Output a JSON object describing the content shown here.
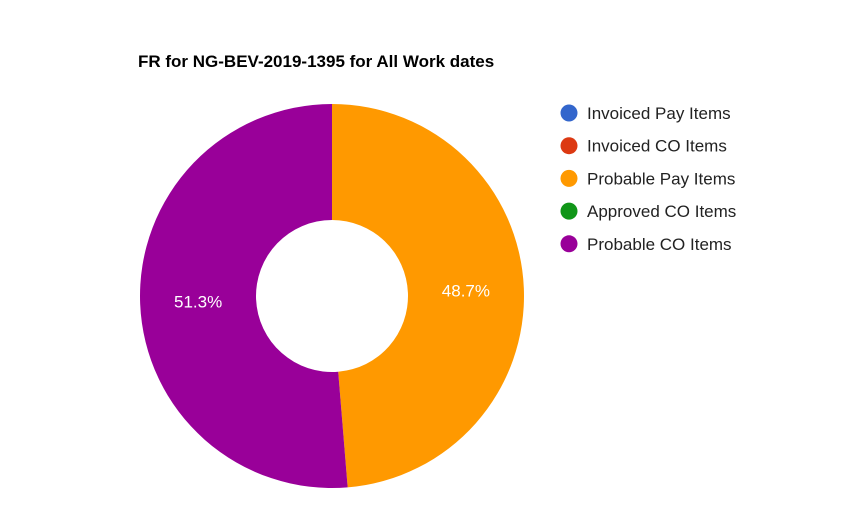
{
  "chart_data": {
    "type": "pie",
    "donut": true,
    "title": "FR for NG-BEV-2019-1395 for All Work dates",
    "legend_position": "right",
    "series": [
      {
        "name": "Invoiced Pay Items",
        "value": 0,
        "color": "#3366cc"
      },
      {
        "name": "Invoiced CO Items",
        "value": 0,
        "color": "#dc3912"
      },
      {
        "name": "Probable Pay Items",
        "value": 48.7,
        "color": "#ff9900",
        "label": "48.7%"
      },
      {
        "name": "Approved CO Items",
        "value": 0,
        "color": "#109618"
      },
      {
        "name": "Probable CO Items",
        "value": 51.3,
        "color": "#990099",
        "label": "51.3%"
      }
    ]
  }
}
